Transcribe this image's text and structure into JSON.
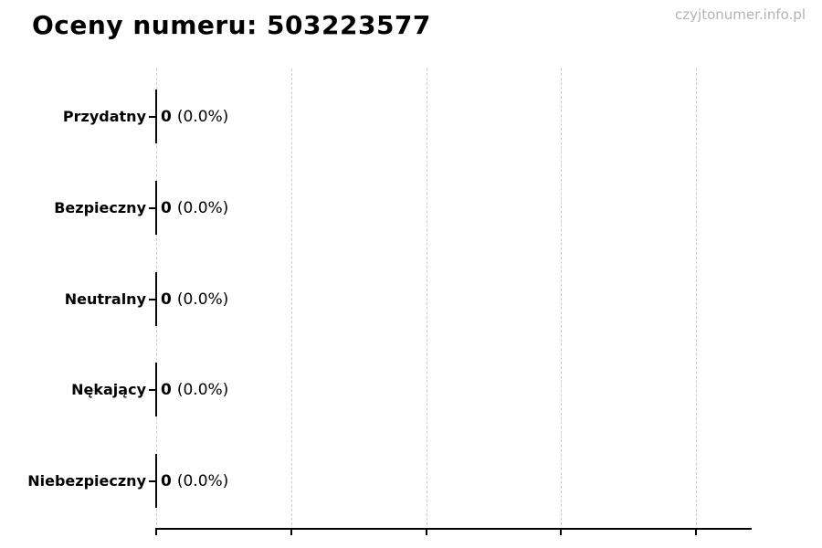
{
  "page": {
    "watermark": "czyjtonumer.info.pl",
    "background": "#ffffff"
  },
  "chart_data": {
    "type": "bar",
    "orientation": "horizontal",
    "title": "Oceny numeru: 503223577",
    "categories": [
      "Przydatny",
      "Bezpieczny",
      "Neutralny",
      "Nękający",
      "Niebezpieczny"
    ],
    "values": [
      0,
      0,
      0,
      0,
      0
    ],
    "rows": [
      {
        "label": "Przydatny",
        "count": "0",
        "percent": "(0.0%)"
      },
      {
        "label": "Bezpieczny",
        "count": "0",
        "percent": "(0.0%)"
      },
      {
        "label": "Neutralny",
        "count": "0",
        "percent": "(0.0%)"
      },
      {
        "label": "Nękający",
        "count": "0",
        "percent": "(0.0%)"
      },
      {
        "label": "Niebezpieczny",
        "count": "0",
        "percent": "(0.0%)"
      }
    ],
    "xlabel": "",
    "ylabel": "",
    "x_tick_labels_visible": false,
    "x_gridline_count": 5,
    "grid": "vertical-dashed",
    "legend": "none",
    "colors": {
      "text": "#000000",
      "bar_edge": "#0a0a0a",
      "grid": "#cccccc",
      "axis": "#000000",
      "watermark": "#b3b3b3"
    }
  }
}
